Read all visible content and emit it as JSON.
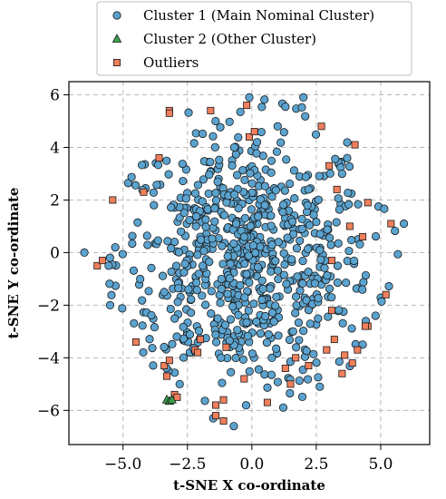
{
  "chart_data": {
    "type": "scatter",
    "title": "",
    "xlabel": "t-SNE X co-ordinate",
    "ylabel": "t-SNE Y co-ordinate",
    "xlim": [
      -7.1,
      6.9
    ],
    "ylim": [
      -7.3,
      6.5
    ],
    "xticks": [
      -5.0,
      -2.5,
      0.0,
      2.5,
      5.0
    ],
    "xtick_labels": [
      "−5.0",
      "−2.5",
      "0.0",
      "2.5",
      "5.0"
    ],
    "yticks": [
      -6,
      -4,
      -2,
      0,
      2,
      4,
      6
    ],
    "ytick_labels": [
      "−6",
      "−4",
      "−2",
      "0",
      "2",
      "4",
      "6"
    ],
    "grid": true,
    "legend_position": "top-center",
    "series": [
      {
        "name": "Cluster 1 (Main Nominal Cluster)",
        "marker": "circle",
        "color": "#5ba3cf",
        "sampled_points": 720,
        "x": [
          5.9,
          2.0,
          -0.1,
          1.0,
          -1.5,
          -5.5,
          -5.3,
          0.2,
          -0.7,
          -6.5,
          4.3,
          3.5,
          -1.2,
          -3.4,
          0.5,
          -2.8,
          1.6,
          -0.3,
          2.2,
          4.8
        ],
        "y": [
          1.1,
          5.9,
          5.9,
          4.8,
          -6.3,
          -2.0,
          0.2,
          4.2,
          -6.6,
          0.0,
          -3.5,
          3.0,
          -4.0,
          -1.5,
          1.8,
          -5.0,
          -3.0,
          0.6,
          2.4,
          -2.4
        ]
      },
      {
        "name": "Cluster 2 (Other Cluster)",
        "marker": "triangle",
        "color": "#3aa14a",
        "x": [
          -3.3,
          -3.2,
          -3.1
        ],
        "y": [
          -5.6,
          -5.65,
          -5.6
        ]
      },
      {
        "name": "Outliers",
        "marker": "square",
        "color": "#f07f5c",
        "x": [
          -6.0,
          -5.8,
          -5.4,
          -4.5,
          -4.2,
          -3.6,
          -3.4,
          -3.2,
          -3.2,
          -3.2,
          -3.0,
          -2.9,
          -2.2,
          -2.1,
          -1.6,
          -1.4,
          -1.4,
          -1.1,
          -1.0,
          -1.1,
          -0.2,
          -0.1,
          0.1,
          0.6,
          1.3,
          1.5,
          1.7,
          2.2,
          2.7,
          2.9,
          3.1,
          3.2,
          3.5,
          3.6,
          3.8,
          4.0,
          4.1,
          4.3,
          4.5,
          5.2,
          5.4,
          4.4,
          3.9,
          3.0,
          3.1,
          -2.0,
          -3.3,
          -0.3,
          3.3,
          4.5
        ],
        "y": [
          -0.5,
          -0.3,
          2.0,
          -3.4,
          2.3,
          3.6,
          -4.3,
          5.4,
          5.3,
          -4.1,
          -5.4,
          -5.5,
          -3.7,
          -3.8,
          5.4,
          -5.8,
          -6.2,
          -5.6,
          -3.6,
          -6.4,
          5.6,
          4.4,
          4.6,
          -5.7,
          -4.4,
          -5.0,
          -4.0,
          -4.3,
          4.8,
          -3.7,
          -2.2,
          -3.3,
          -4.6,
          -3.9,
          1.0,
          4.1,
          -3.7,
          0.6,
          -2.8,
          -1.6,
          1.1,
          -2.8,
          -4.2,
          3.3,
          -0.3,
          -3.3,
          -4.7,
          -4.8,
          2.4,
          1.9
        ]
      }
    ]
  }
}
